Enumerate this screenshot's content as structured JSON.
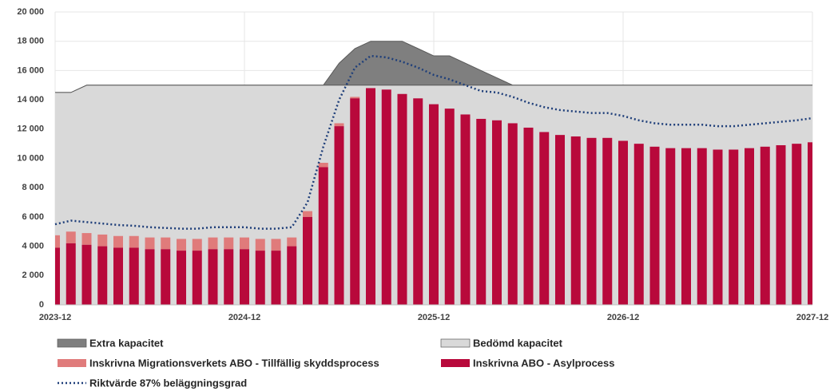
{
  "chart_data": {
    "type": "combo",
    "categories": [
      "2023-12",
      null,
      null,
      null,
      null,
      null,
      null,
      null,
      null,
      null,
      null,
      null,
      "2024-12",
      null,
      null,
      null,
      null,
      null,
      null,
      null,
      null,
      null,
      null,
      null,
      "2025-12",
      null,
      null,
      null,
      null,
      null,
      null,
      null,
      null,
      null,
      null,
      null,
      "2026-12",
      null,
      null,
      null,
      null,
      null,
      null,
      null,
      null,
      null,
      null,
      null,
      "2027-12"
    ],
    "ylim": [
      0,
      20000
    ],
    "yticks": [
      0,
      {
        "value": 2000,
        "label": "2 000"
      },
      {
        "value": 4000,
        "label": "4 000"
      },
      {
        "value": 6000,
        "label": "6 000"
      },
      {
        "value": 8000,
        "label": "8 000"
      },
      {
        "value": 10000,
        "label": "10 000"
      },
      {
        "value": 12000,
        "label": "12 000"
      },
      {
        "value": 14000,
        "label": "14 000"
      },
      {
        "value": 16000,
        "label": "16 000"
      },
      {
        "value": 18000,
        "label": "18 000"
      },
      {
        "value": 20000,
        "label": "20 000"
      }
    ],
    "grid": true,
    "series": [
      {
        "name": "Extra kapacitet",
        "type": "area",
        "stack": "cap",
        "color": "#7f7f7f",
        "values": [
          0,
          0,
          0,
          0,
          0,
          0,
          0,
          0,
          0,
          0,
          0,
          0,
          0,
          0,
          0,
          0,
          0,
          0,
          1500,
          2500,
          3000,
          3000,
          3000,
          2500,
          2000,
          2000,
          1500,
          1000,
          500,
          0,
          0,
          0,
          0,
          0,
          0,
          0,
          0,
          0,
          0,
          0,
          0,
          0,
          0,
          0,
          0,
          0,
          0,
          0,
          0
        ]
      },
      {
        "name": "Bedömd kapacitet",
        "type": "area",
        "stack": "cap",
        "color": "#d9d9d9",
        "values": [
          14500,
          14500,
          15000,
          15000,
          15000,
          15000,
          15000,
          15000,
          15000,
          15000,
          15000,
          15000,
          15000,
          15000,
          15000,
          15000,
          15000,
          15000,
          15000,
          15000,
          15000,
          15000,
          15000,
          15000,
          15000,
          15000,
          15000,
          15000,
          15000,
          15000,
          15000,
          15000,
          15000,
          15000,
          15000,
          15000,
          15000,
          15000,
          15000,
          15000,
          15000,
          15000,
          15000,
          15000,
          15000,
          15000,
          15000,
          15000,
          15000
        ]
      },
      {
        "name": "Inskrivna Migrationsverkets ABO - Tillfällig skyddsprocess",
        "type": "bar",
        "stack": "abo",
        "color": "#e07b7b",
        "values": [
          850,
          800,
          800,
          800,
          800,
          800,
          800,
          800,
          800,
          800,
          800,
          800,
          800,
          800,
          800,
          600,
          400,
          300,
          200,
          100,
          0,
          0,
          0,
          0,
          0,
          0,
          0,
          0,
          0,
          0,
          0,
          0,
          0,
          0,
          0,
          0,
          0,
          0,
          0,
          0,
          0,
          0,
          0,
          0,
          0,
          0,
          0,
          0,
          0
        ]
      },
      {
        "name": "Inskrivna ABO - Asylprocess",
        "type": "bar",
        "stack": "abo",
        "color": "#b8093b",
        "values": [
          3900,
          4200,
          4100,
          4000,
          3900,
          3900,
          3800,
          3800,
          3700,
          3700,
          3800,
          3800,
          3800,
          3700,
          3700,
          4000,
          6000,
          9400,
          12200,
          14100,
          14800,
          14700,
          14400,
          14100,
          13700,
          13400,
          13000,
          12700,
          12600,
          12400,
          12100,
          11800,
          11600,
          11500,
          11400,
          11400,
          11200,
          11000,
          10800,
          10700,
          10700,
          10700,
          10600,
          10600,
          10700,
          10800,
          10900,
          11000,
          11100
        ]
      },
      {
        "name": "Riktvärde  87% beläggningsgrad",
        "type": "line",
        "color": "#1f3f7a",
        "values": [
          5500,
          5750,
          5650,
          5550,
          5450,
          5400,
          5300,
          5250,
          5200,
          5200,
          5300,
          5300,
          5300,
          5200,
          5200,
          5300,
          7000,
          10800,
          14000,
          16200,
          17000,
          16900,
          16600,
          16200,
          15700,
          15400,
          15000,
          14600,
          14500,
          14200,
          13800,
          13500,
          13300,
          13200,
          13100,
          13100,
          12900,
          12600,
          12400,
          12300,
          12300,
          12300,
          12200,
          12200,
          12300,
          12400,
          12500,
          12600,
          12750
        ]
      }
    ]
  }
}
